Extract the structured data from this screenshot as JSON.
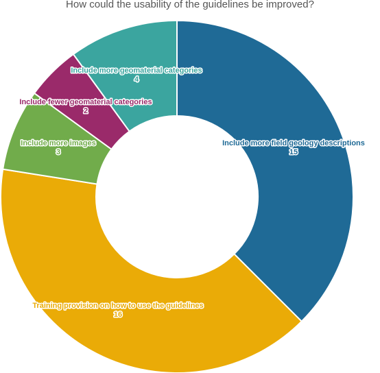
{
  "chart_data": {
    "type": "pie",
    "title": "How could the usability of the guidelines be improved?",
    "donut": true,
    "legend": "none",
    "slices": [
      {
        "label": "Include more field geology descriptions",
        "value": 15,
        "color": "#1f6a96"
      },
      {
        "label": "Training provision on how to use the guidelines",
        "value": 16,
        "color": "#eaab07"
      },
      {
        "label": "Include more images",
        "value": 3,
        "color": "#71ac4b"
      },
      {
        "label": "Include fewer geomaterial categories",
        "value": 2,
        "color": "#9a2a6a"
      },
      {
        "label": "Include more geomaterial categories",
        "value": 4,
        "color": "#3ba59f"
      }
    ]
  }
}
